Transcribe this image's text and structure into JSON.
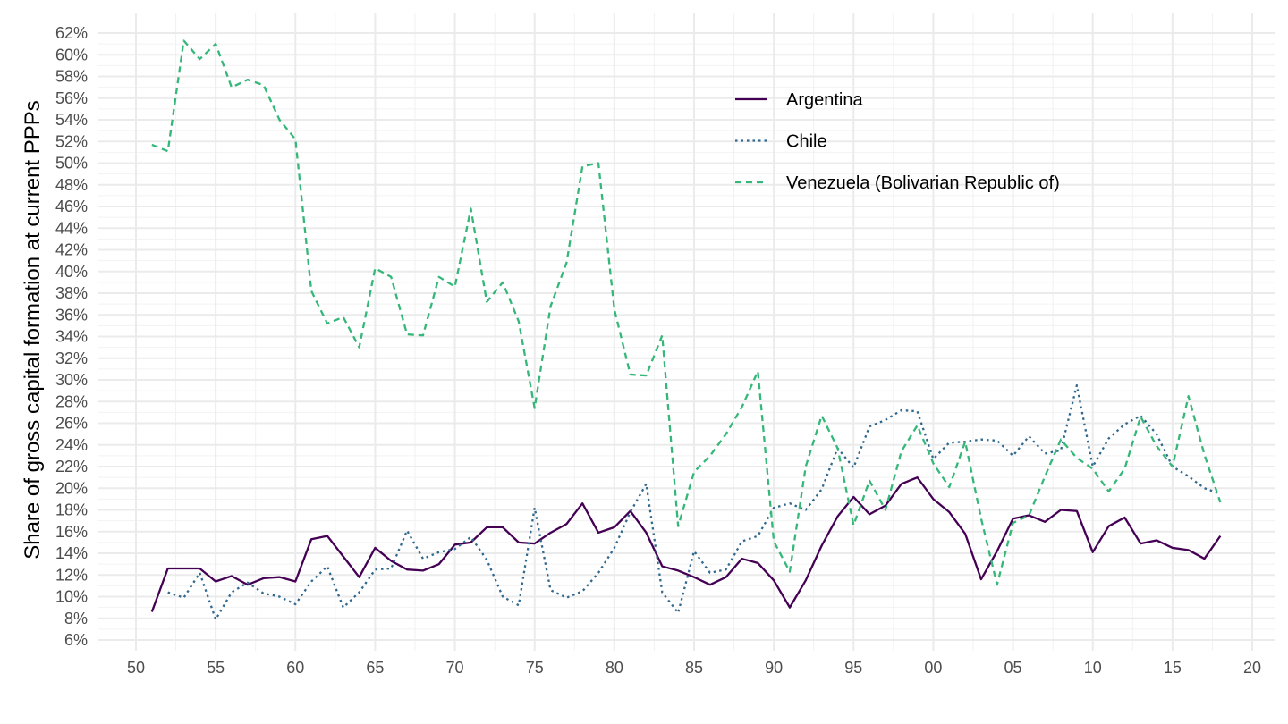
{
  "chart_data": {
    "type": "line",
    "ylabel": "Share of gross capital formation at current PPPs",
    "xlabel": "",
    "x_tick_labels": [
      "50",
      "55",
      "60",
      "65",
      "70",
      "75",
      "80",
      "85",
      "90",
      "95",
      "00",
      "05",
      "10",
      "15",
      "20"
    ],
    "y_tick_labels": [
      "6%",
      "8%",
      "10%",
      "12%",
      "14%",
      "16%",
      "18%",
      "20%",
      "22%",
      "24%",
      "26%",
      "28%",
      "30%",
      "32%",
      "34%",
      "36%",
      "38%",
      "40%",
      "42%",
      "44%",
      "46%",
      "48%",
      "50%",
      "52%",
      "54%",
      "56%",
      "58%",
      "60%",
      "62%"
    ],
    "xlim": [
      1950,
      2020
    ],
    "ylim": [
      6,
      62
    ],
    "y_unit": "%",
    "grid": true,
    "legend_position": "top-right",
    "series": [
      {
        "name": "Argentina",
        "color": "#440154",
        "line_style": "solid",
        "x": [
          1951,
          1952,
          1953,
          1954,
          1955,
          1956,
          1957,
          1958,
          1959,
          1960,
          1961,
          1962,
          1963,
          1964,
          1965,
          1966,
          1967,
          1968,
          1969,
          1970,
          1971,
          1972,
          1973,
          1974,
          1975,
          1976,
          1977,
          1978,
          1979,
          1980,
          1981,
          1982,
          1983,
          1984,
          1985,
          1986,
          1987,
          1988,
          1989,
          1990,
          1991,
          1992,
          1993,
          1994,
          1995,
          1996,
          1997,
          1998,
          1999,
          2000,
          2001,
          2002,
          2003,
          2004,
          2005,
          2006,
          2007,
          2008,
          2009,
          2010,
          2011,
          2012,
          2013,
          2014,
          2015,
          2016,
          2017,
          2018
        ],
        "values": [
          8.6,
          12.6,
          12.6,
          12.6,
          11.4,
          11.9,
          11.1,
          11.7,
          11.8,
          11.4,
          15.3,
          15.6,
          13.7,
          11.8,
          14.5,
          13.3,
          12.5,
          12.4,
          13.0,
          14.8,
          15.0,
          16.4,
          16.4,
          15.0,
          14.9,
          15.9,
          16.7,
          18.6,
          15.9,
          16.4,
          17.9,
          15.9,
          12.8,
          12.4,
          11.8,
          11.1,
          11.8,
          13.5,
          13.1,
          11.5,
          9.0,
          11.5,
          14.7,
          17.4,
          19.2,
          17.6,
          18.4,
          20.4,
          21.0,
          19.0,
          17.8,
          15.8,
          11.6,
          14.2,
          17.2,
          17.5,
          16.9,
          18.0,
          17.9,
          14.1,
          16.5,
          17.3,
          14.9,
          15.2,
          14.5,
          14.3,
          13.5,
          15.6
        ]
      },
      {
        "name": "Chile",
        "color": "#31688E",
        "line_style": "dotted",
        "x": [
          1952,
          1953,
          1954,
          1955,
          1956,
          1957,
          1958,
          1959,
          1960,
          1961,
          1962,
          1963,
          1964,
          1965,
          1966,
          1967,
          1968,
          1969,
          1970,
          1971,
          1972,
          1973,
          1974,
          1975,
          1976,
          1977,
          1978,
          1979,
          1980,
          1981,
          1982,
          1983,
          1984,
          1985,
          1986,
          1987,
          1988,
          1989,
          1990,
          1991,
          1992,
          1993,
          1994,
          1995,
          1996,
          1997,
          1998,
          1999,
          2000,
          2001,
          2002,
          2003,
          2004,
          2005,
          2006,
          2007,
          2008,
          2009,
          2010,
          2011,
          2012,
          2013,
          2014,
          2015,
          2016,
          2017,
          2018
        ],
        "values": [
          10.4,
          9.9,
          12.2,
          7.9,
          10.4,
          11.3,
          10.3,
          10.0,
          9.3,
          11.4,
          12.8,
          9.0,
          10.4,
          12.5,
          12.6,
          16.1,
          13.5,
          14.1,
          14.4,
          15.5,
          13.4,
          10.0,
          9.2,
          18.2,
          10.6,
          9.9,
          10.5,
          12.2,
          14.5,
          17.8,
          20.4,
          10.4,
          8.5,
          14.2,
          12.2,
          12.5,
          15.1,
          15.6,
          18.2,
          18.6,
          18.0,
          19.9,
          23.7,
          21.9,
          25.7,
          26.3,
          27.2,
          27.1,
          22.7,
          24.2,
          24.3,
          24.5,
          24.4,
          23.0,
          24.8,
          23.2,
          23.5,
          29.5,
          22.0,
          24.6,
          25.9,
          26.7,
          25.0,
          22.0,
          21.1,
          20.0,
          19.5
        ]
      },
      {
        "name": "Venezuela (Bolivarian Republic of)",
        "color": "#35B779",
        "line_style": "dashed",
        "x": [
          1951,
          1952,
          1953,
          1954,
          1955,
          1956,
          1957,
          1958,
          1959,
          1960,
          1961,
          1962,
          1963,
          1964,
          1965,
          1966,
          1967,
          1968,
          1969,
          1970,
          1971,
          1972,
          1973,
          1974,
          1975,
          1976,
          1977,
          1978,
          1979,
          1980,
          1981,
          1982,
          1983,
          1984,
          1985,
          1986,
          1987,
          1988,
          1989,
          1990,
          1991,
          1992,
          1993,
          1994,
          1995,
          1996,
          1997,
          1998,
          1999,
          2000,
          2001,
          2002,
          2003,
          2004,
          2005,
          2006,
          2007,
          2008,
          2009,
          2010,
          2011,
          2012,
          2013,
          2014,
          2015,
          2016,
          2017,
          2018
        ],
        "values": [
          51.7,
          51.1,
          61.3,
          59.6,
          61.0,
          57.0,
          57.7,
          57.2,
          54.0,
          52.2,
          38.2,
          35.2,
          35.8,
          33.0,
          40.3,
          39.5,
          34.2,
          34.1,
          39.5,
          38.6,
          45.8,
          37.2,
          39.0,
          35.4,
          27.4,
          36.8,
          40.8,
          49.7,
          50.0,
          36.5,
          30.5,
          30.4,
          34.1,
          16.5,
          21.5,
          23.0,
          25.0,
          27.5,
          30.8,
          15.1,
          12.3,
          22.0,
          26.7,
          23.7,
          16.6,
          20.7,
          18.0,
          23.4,
          25.8,
          22.3,
          20.1,
          24.3,
          17.2,
          11.1,
          16.8,
          17.5,
          21.1,
          24.5,
          22.8,
          21.8,
          19.7,
          21.8,
          26.6,
          23.9,
          22.0,
          28.5,
          23.1,
          18.7
        ]
      }
    ]
  }
}
